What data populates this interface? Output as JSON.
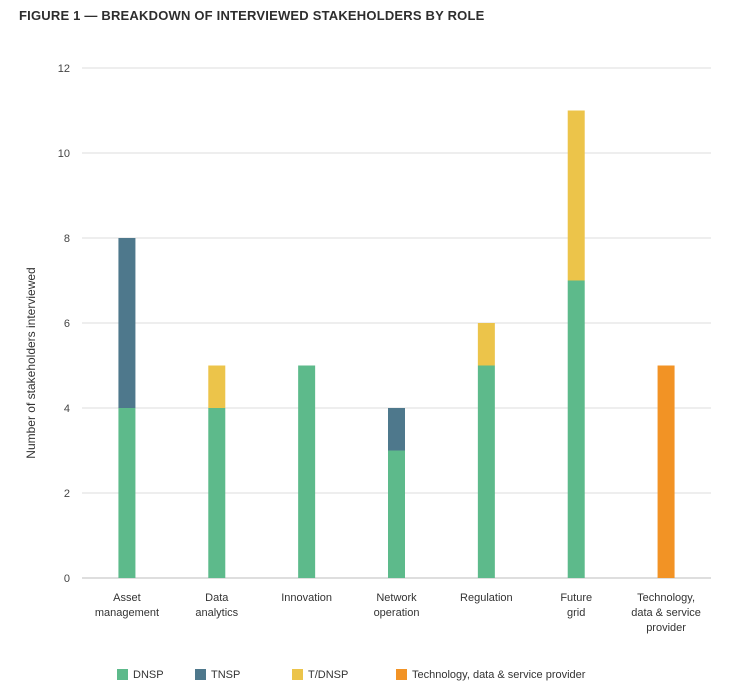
{
  "title": "FIGURE 1 — BREAKDOWN OF INTERVIEWED STAKEHOLDERS BY ROLE",
  "chart_data": {
    "type": "bar",
    "stacked": true,
    "title": "FIGURE 1 — BREAKDOWN OF INTERVIEWED STAKEHOLDERS BY ROLE",
    "xlabel": "",
    "ylabel": "Number of stakeholders interviewed",
    "ylim": [
      0,
      12
    ],
    "yticks": [
      0,
      2,
      4,
      6,
      8,
      10,
      12
    ],
    "grid": true,
    "legend_position": "bottom",
    "categories": [
      [
        "Asset",
        "management"
      ],
      [
        "Data",
        "analytics"
      ],
      [
        "Innovation"
      ],
      [
        "Network",
        "operation"
      ],
      [
        "Regulation"
      ],
      [
        "Future",
        "grid"
      ],
      [
        "Technology,",
        "data & service",
        "provider"
      ]
    ],
    "series": [
      {
        "name": "DNSP",
        "color": "#5dba8b",
        "values": [
          4,
          4,
          5,
          3,
          5,
          7,
          0
        ]
      },
      {
        "name": "TNSP",
        "color": "#4e788c",
        "values": [
          4,
          0,
          0,
          1,
          0,
          0,
          0
        ]
      },
      {
        "name": "T/DNSP",
        "color": "#ecc44a",
        "values": [
          0,
          1,
          0,
          0,
          1,
          4,
          0
        ]
      },
      {
        "name": "Technology, data & service provider",
        "color": "#f29325",
        "values": [
          0,
          0,
          0,
          0,
          0,
          0,
          5
        ]
      }
    ]
  }
}
